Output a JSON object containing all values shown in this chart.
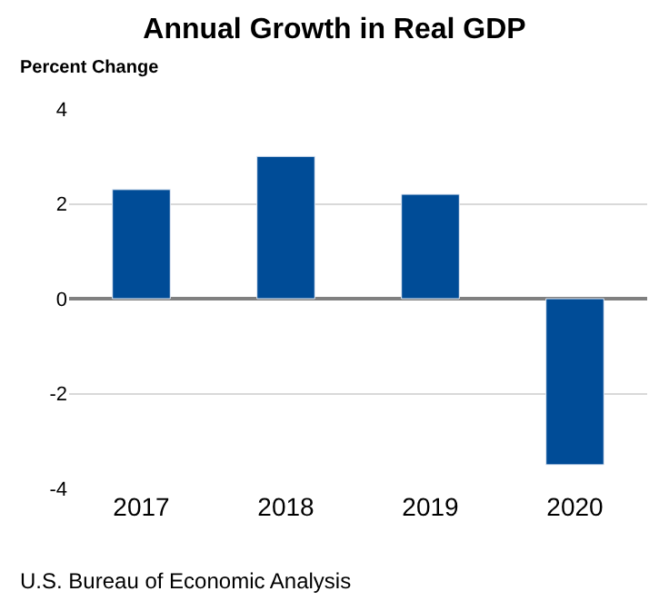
{
  "chart_data": {
    "type": "bar",
    "title": "Annual Growth in Real GDP",
    "ylabel": "Percent Change",
    "categories": [
      "2017",
      "2018",
      "2019",
      "2020"
    ],
    "values": [
      2.3,
      3.0,
      2.2,
      -3.5
    ],
    "color": "#004c97",
    "ylim": [
      -4,
      4
    ],
    "yticks": [
      -4,
      -2,
      0,
      2,
      4
    ],
    "grid": "y",
    "annotations": [
      "U.S. Bureau of Economic Analysis"
    ]
  }
}
